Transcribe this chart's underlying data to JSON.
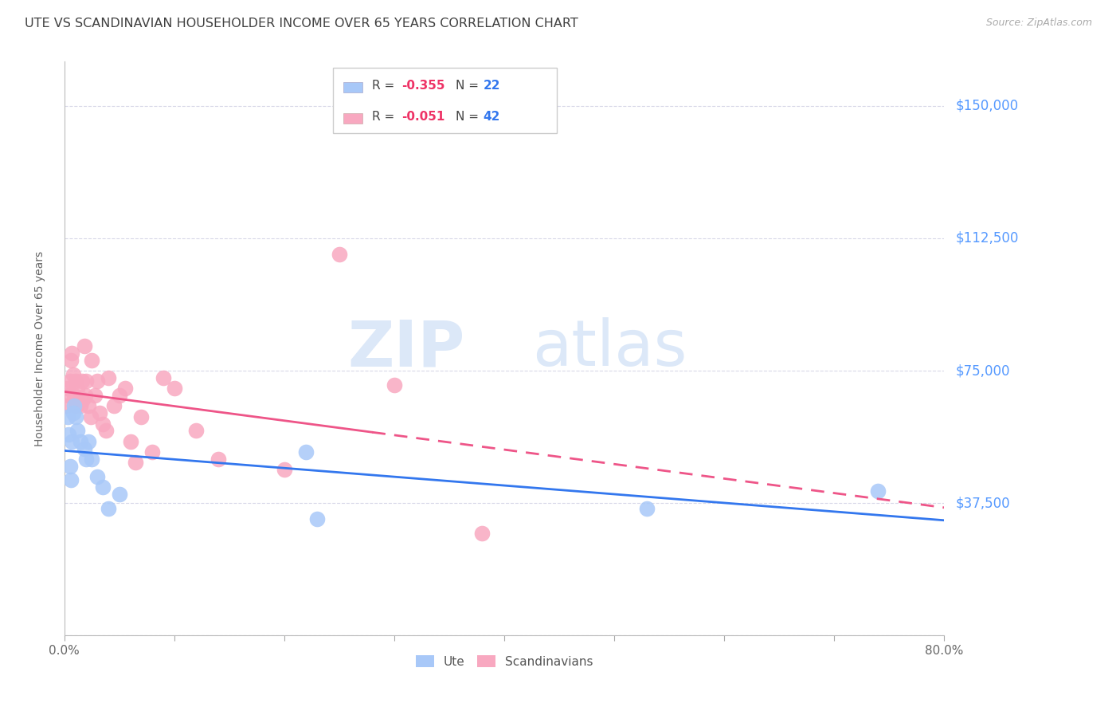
{
  "title": "UTE VS SCANDINAVIAN HOUSEHOLDER INCOME OVER 65 YEARS CORRELATION CHART",
  "source": "Source: ZipAtlas.com",
  "ylabel": "Householder Income Over 65 years",
  "xlim": [
    0.0,
    0.8
  ],
  "ylim": [
    0,
    162500
  ],
  "yticks": [
    0,
    37500,
    75000,
    112500,
    150000
  ],
  "ytick_labels": [
    "",
    "$37,500",
    "$75,000",
    "$112,500",
    "$150,000"
  ],
  "xticks": [
    0.0,
    0.1,
    0.2,
    0.3,
    0.4,
    0.5,
    0.6,
    0.7,
    0.8
  ],
  "background_color": "#ffffff",
  "grid_color": "#d8d8e8",
  "title_color": "#404040",
  "ytick_color": "#5599ff",
  "ute_color": "#a8c8f8",
  "scand_color": "#f8a8c0",
  "ute_line_color": "#3377ee",
  "scand_line_color": "#ee5588",
  "legend_r_ute": "-0.355",
  "legend_n_ute": "22",
  "legend_r_scand": "-0.051",
  "legend_n_scand": "42",
  "ute_x": [
    0.003,
    0.004,
    0.005,
    0.006,
    0.007,
    0.008,
    0.009,
    0.01,
    0.012,
    0.015,
    0.018,
    0.02,
    0.022,
    0.025,
    0.03,
    0.035,
    0.04,
    0.05,
    0.22,
    0.23,
    0.53,
    0.74
  ],
  "ute_y": [
    62000,
    57000,
    48000,
    44000,
    55000,
    63000,
    65000,
    62000,
    58000,
    55000,
    53000,
    50000,
    55000,
    50000,
    45000,
    42000,
    36000,
    40000,
    52000,
    33000,
    36000,
    41000
  ],
  "scand_x": [
    0.002,
    0.003,
    0.004,
    0.005,
    0.006,
    0.007,
    0.008,
    0.009,
    0.01,
    0.011,
    0.012,
    0.013,
    0.015,
    0.016,
    0.017,
    0.018,
    0.019,
    0.02,
    0.022,
    0.024,
    0.025,
    0.028,
    0.03,
    0.032,
    0.035,
    0.038,
    0.04,
    0.045,
    0.05,
    0.055,
    0.06,
    0.065,
    0.07,
    0.08,
    0.09,
    0.1,
    0.12,
    0.14,
    0.2,
    0.25,
    0.3,
    0.38
  ],
  "scand_y": [
    65000,
    70000,
    68000,
    72000,
    78000,
    80000,
    74000,
    68000,
    72000,
    65000,
    70000,
    66000,
    65000,
    72000,
    67000,
    82000,
    68000,
    72000,
    65000,
    62000,
    78000,
    68000,
    72000,
    63000,
    60000,
    58000,
    73000,
    65000,
    68000,
    70000,
    55000,
    49000,
    62000,
    52000,
    73000,
    70000,
    58000,
    50000,
    47000,
    108000,
    71000,
    29000
  ]
}
